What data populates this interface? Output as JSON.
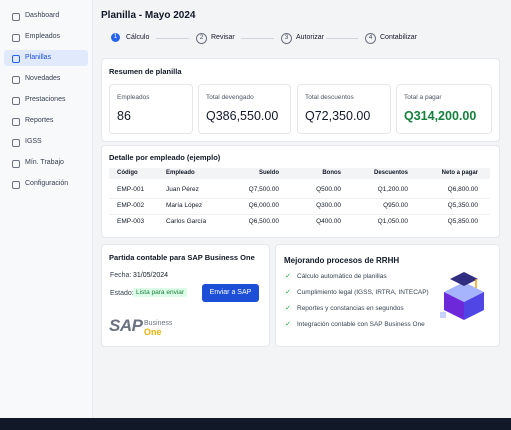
{
  "sidebar": {
    "items": [
      "Dashboard",
      "Empleados",
      "Planillas",
      "Novedades",
      "Prestaciones",
      "Reportes",
      "IGSS",
      "Mín. Trabajo",
      "Configuración"
    ],
    "active": 2
  },
  "header": {
    "title": "Planilla - Mayo 2024"
  },
  "steps": [
    {
      "number": "1",
      "label": "Cálculo"
    },
    {
      "number": "2",
      "label": "Revisar"
    },
    {
      "number": "3",
      "label": "Autorizar"
    },
    {
      "number": "4",
      "label": "Contabilizar"
    }
  ],
  "summary": {
    "title": "Resumen de planilla",
    "stats": [
      {
        "label": "Empleados",
        "value": "86"
      },
      {
        "label": "Total devengado",
        "value": "Q386,550.00"
      },
      {
        "label": "Total descuentos",
        "value": "Q72,350.00"
      },
      {
        "label": "Total a pagar",
        "value": "Q314,200.00"
      }
    ]
  },
  "detail": {
    "title": "Detalle por empleado (ejemplo)",
    "columns": [
      "Código",
      "Empleado",
      "Sueldo",
      "Bonos",
      "Descuentos",
      "Neto a pagar"
    ],
    "rows": [
      [
        "EMP-001",
        "Juan Pérez",
        "Q7,500.00",
        "Q500.00",
        "Q1,200.00",
        "Q6,800.00"
      ],
      [
        "EMP-002",
        "María López",
        "Q6,000.00",
        "Q300.00",
        "Q950.00",
        "Q5,350.00"
      ],
      [
        "EMP-003",
        "Carlos García",
        "Q6,500.00",
        "Q400.00",
        "Q1,050.00",
        "Q5,850.00"
      ]
    ]
  },
  "sap": {
    "title": "Partida contable para SAP Business One",
    "date_label": "Fecha:",
    "date": "31/05/2024",
    "status_label": "Estado:",
    "status": "Lista para enviar",
    "button": "Enviar a SAP",
    "logo": {
      "sap": "SAP",
      "line1": "Business",
      "line2": "One"
    }
  },
  "benefits": {
    "title": "Mejorando procesos de RRHH",
    "items": [
      "Cálculo automático de planillas",
      "Cumplimiento legal (IGSS, IRTRA, INTECAP)",
      "Reportes y constancias en segundos",
      "Integración contable con SAP Business One"
    ]
  }
}
